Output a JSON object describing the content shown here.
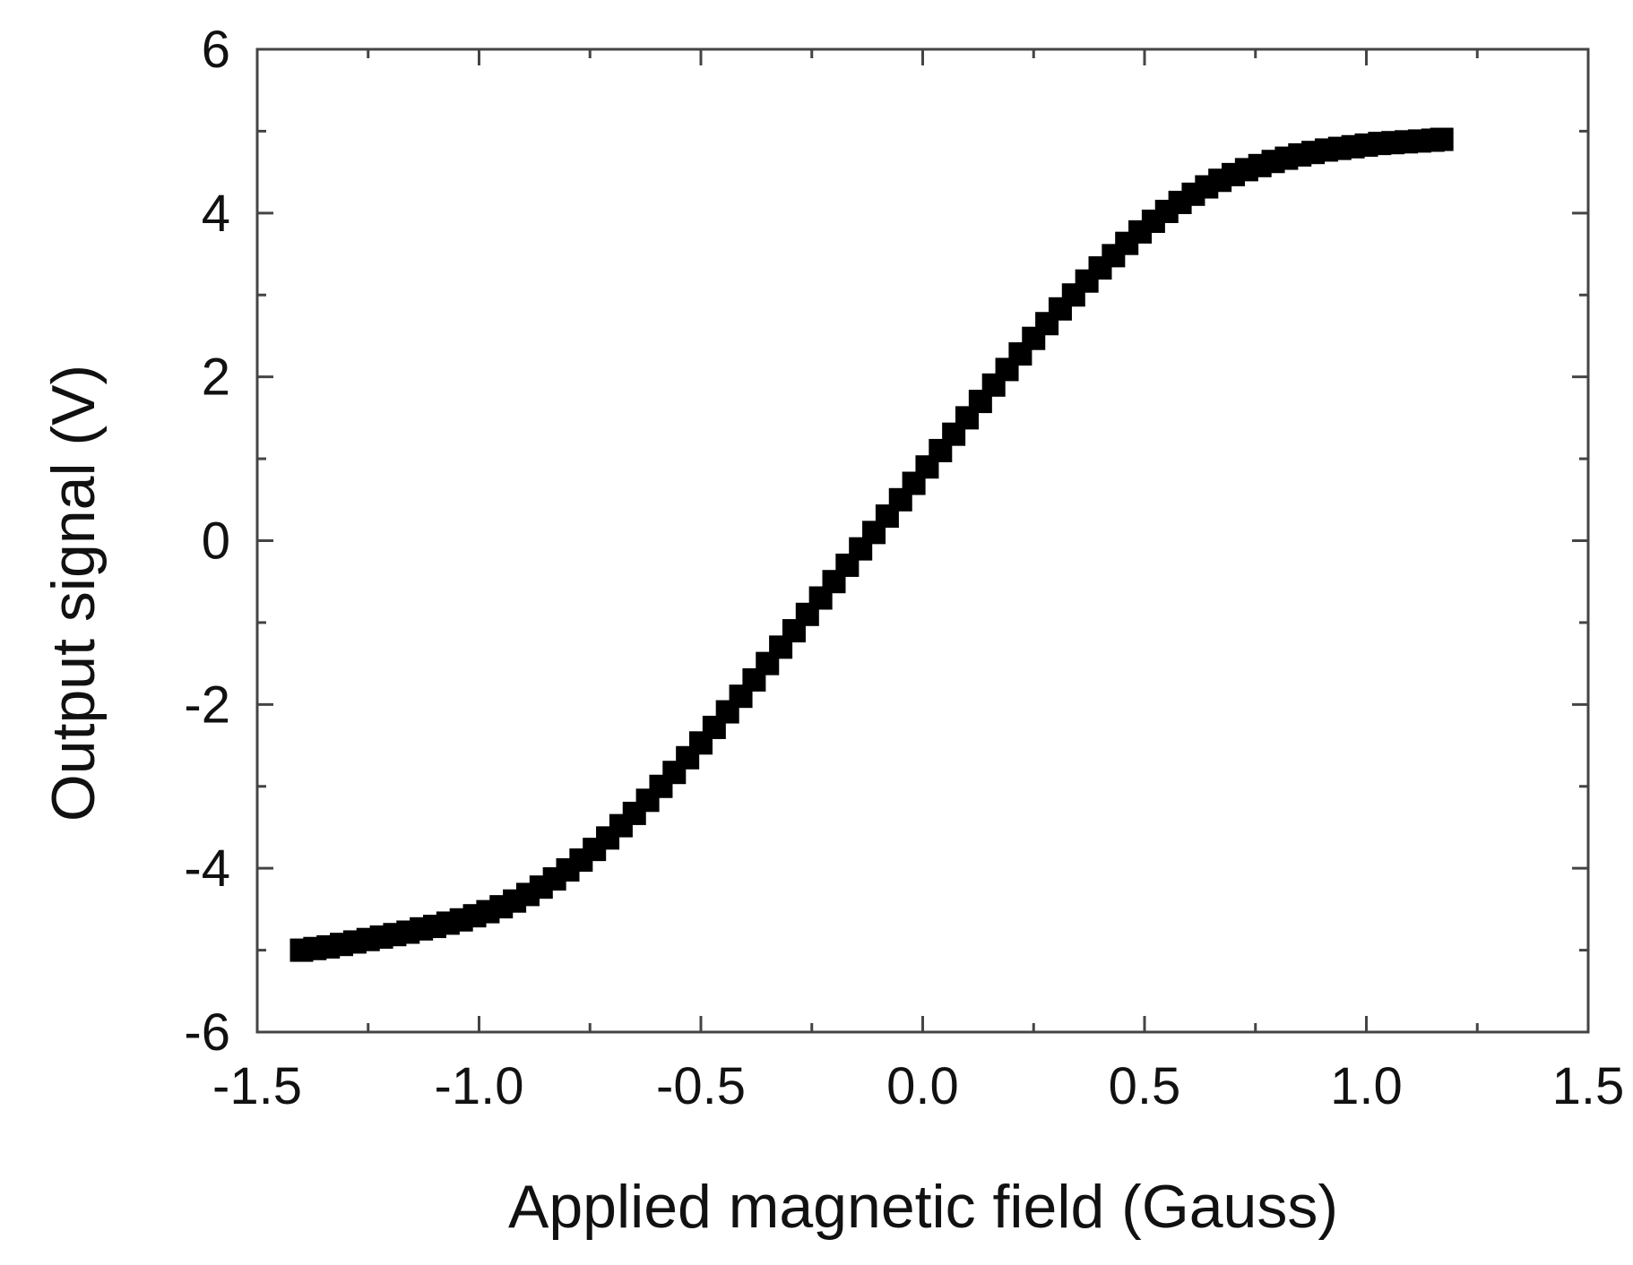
{
  "chart_data": {
    "type": "scatter",
    "xlabel": "Applied magnetic field (Gauss)",
    "ylabel": "Output signal (V)",
    "xlim": [
      -1.5,
      1.5
    ],
    "ylim": [
      -6,
      6
    ],
    "x_ticks": [
      -1.5,
      -1.0,
      -0.5,
      0.0,
      0.5,
      1.0,
      1.5
    ],
    "x_tick_labels": [
      "-1.5",
      "-1.0",
      "-0.5",
      "0.0",
      "0.5",
      "1.0",
      "1.5"
    ],
    "y_ticks": [
      -6,
      -4,
      -2,
      0,
      2,
      4,
      6
    ],
    "y_tick_labels": [
      "-6",
      "-4",
      "-2",
      "0",
      "2",
      "4",
      "6"
    ],
    "x_minor_step": 0.25,
    "y_minor_step": 1,
    "grid": false,
    "legend": "none",
    "marker": "square",
    "marker_color": "#000000",
    "series": [
      {
        "x": [
          -1.4,
          -1.37,
          -1.34,
          -1.31,
          -1.28,
          -1.25,
          -1.22,
          -1.19,
          -1.16,
          -1.13,
          -1.1,
          -1.07,
          -1.04,
          -1.01,
          -0.98,
          -0.95,
          -0.92,
          -0.89,
          -0.86,
          -0.83,
          -0.8,
          -0.77,
          -0.74,
          -0.71,
          -0.68,
          -0.65,
          -0.62,
          -0.59,
          -0.56,
          -0.53,
          -0.5,
          -0.47,
          -0.44,
          -0.41,
          -0.38,
          -0.35,
          -0.32,
          -0.29,
          -0.26,
          -0.23,
          -0.2,
          -0.17,
          -0.14,
          -0.11,
          -0.08,
          -0.05,
          -0.02,
          0.01,
          0.04,
          0.07,
          0.1,
          0.13,
          0.16,
          0.19,
          0.22,
          0.25,
          0.28,
          0.31,
          0.34,
          0.37,
          0.4,
          0.43,
          0.46,
          0.49,
          0.52,
          0.55,
          0.58,
          0.61,
          0.64,
          0.67,
          0.7,
          0.73,
          0.76,
          0.79,
          0.82,
          0.85,
          0.88,
          0.91,
          0.94,
          0.97,
          1.0,
          1.03,
          1.06,
          1.09,
          1.12,
          1.15,
          1.17
        ],
        "y": [
          -5.0,
          -4.98,
          -4.96,
          -4.93,
          -4.9,
          -4.87,
          -4.84,
          -4.81,
          -4.78,
          -4.74,
          -4.71,
          -4.67,
          -4.63,
          -4.58,
          -4.53,
          -4.47,
          -4.4,
          -4.32,
          -4.23,
          -4.13,
          -4.02,
          -3.9,
          -3.77,
          -3.63,
          -3.48,
          -3.33,
          -3.17,
          -3.0,
          -2.83,
          -2.65,
          -2.47,
          -2.28,
          -2.09,
          -1.9,
          -1.7,
          -1.5,
          -1.3,
          -1.1,
          -0.9,
          -0.7,
          -0.5,
          -0.3,
          -0.1,
          0.1,
          0.3,
          0.5,
          0.7,
          0.9,
          1.1,
          1.3,
          1.5,
          1.7,
          1.9,
          2.09,
          2.28,
          2.47,
          2.65,
          2.83,
          3.0,
          3.17,
          3.33,
          3.48,
          3.63,
          3.77,
          3.9,
          4.02,
          4.13,
          4.23,
          4.32,
          4.4,
          4.47,
          4.53,
          4.58,
          4.63,
          4.67,
          4.71,
          4.74,
          4.77,
          4.79,
          4.81,
          4.83,
          4.85,
          4.86,
          4.87,
          4.88,
          4.89,
          4.9
        ]
      }
    ]
  }
}
